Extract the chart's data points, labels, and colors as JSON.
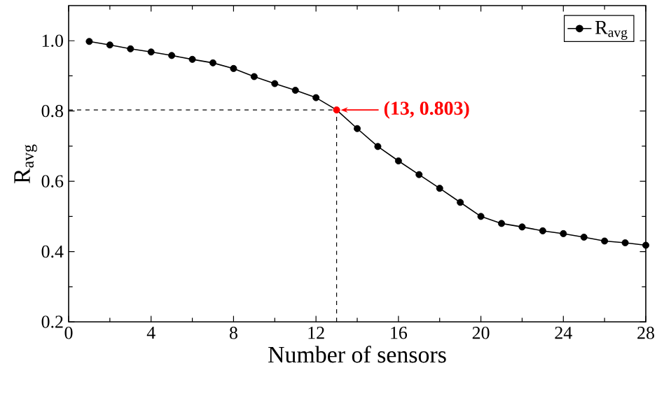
{
  "chart_data": {
    "type": "line",
    "xlabel": "Number of sensors",
    "ylabel": "R$_{avg}$",
    "x": [
      1,
      2,
      3,
      4,
      5,
      6,
      7,
      8,
      9,
      10,
      11,
      12,
      13,
      14,
      15,
      16,
      17,
      18,
      19,
      20,
      21,
      22,
      23,
      24,
      25,
      26,
      27,
      28
    ],
    "series": [
      {
        "name": "R$_{avg}$",
        "color": "#000000",
        "colors": [
          "#000000",
          "#000000",
          "#000000",
          "#000000",
          "#000000",
          "#000000",
          "#000000",
          "#000000",
          "#000000",
          "#000000",
          "#000000",
          "#000000",
          "#ff0000",
          "#000000",
          "#000000",
          "#000000",
          "#000000",
          "#000000",
          "#000000",
          "#000000",
          "#000000",
          "#000000",
          "#000000",
          "#000000",
          "#000000",
          "#000000",
          "#000000",
          "#000000"
        ],
        "values": [
          0.998,
          0.988,
          0.977,
          0.968,
          0.958,
          0.947,
          0.937,
          0.921,
          0.898,
          0.878,
          0.859,
          0.838,
          0.803,
          0.75,
          0.699,
          0.658,
          0.619,
          0.58,
          0.54,
          0.5,
          0.48,
          0.47,
          0.459,
          0.451,
          0.441,
          0.43,
          0.425,
          0.418
        ]
      }
    ],
    "xlim": [
      0,
      28
    ],
    "xticks": [
      0,
      4,
      8,
      12,
      16,
      20,
      24,
      28
    ],
    "ylim": [
      0.2,
      1.1
    ],
    "yticks": [
      0.2,
      0.4,
      0.6,
      0.8,
      {
        "value": 1.0,
        "label": "1.0"
      }
    ],
    "ref_lines": [
      {
        "axis": "x",
        "value": 13,
        "color": "#000000",
        "line_style": "dashed"
      },
      {
        "axis": "y",
        "value": 0.803,
        "color": "#000000",
        "line_style": "dashed"
      }
    ],
    "annotations": [
      {
        "text": "(13, 0.803)",
        "x": 13,
        "y": 0.803
      }
    ],
    "marker": "circle",
    "line_style": "solid",
    "legend": "top right",
    "grid": false
  }
}
